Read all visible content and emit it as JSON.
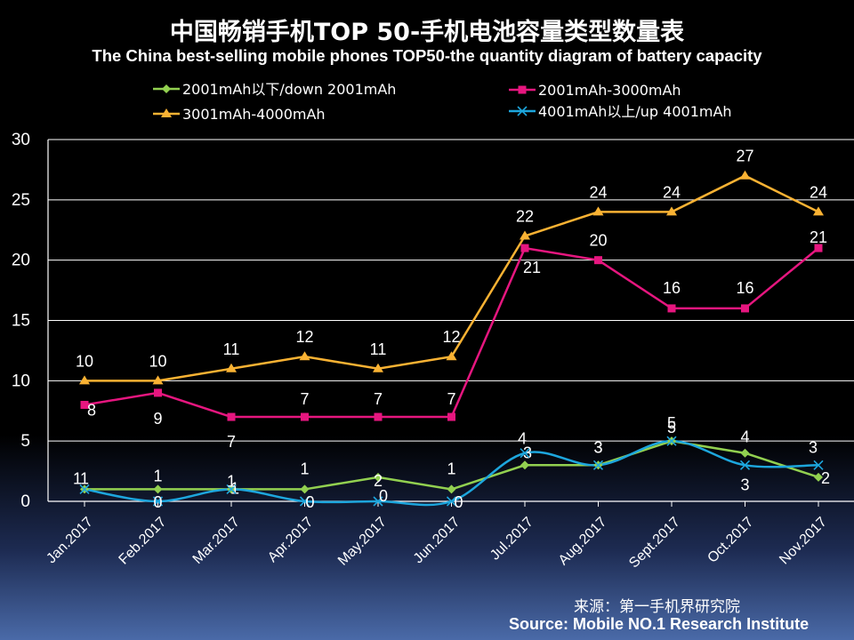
{
  "colors": {
    "down2001": "#92d050",
    "r2001_3000": "#e6167f",
    "r3001_4000": "#f9b233",
    "up4001": "#1da6dd",
    "grid": "#ffffff",
    "text": "#ffffff"
  },
  "chart_data": {
    "type": "line",
    "title": "中国畅销手机TOP 50-手机电池容量类型数量表",
    "subtitle": "The China best-selling mobile phones TOP50-the quantity diagram of battery capacity",
    "categories": [
      "Jan.2017",
      "Feb.2017",
      "Mar.2017",
      "Apr.2017",
      "May.2017",
      "Jun.2017",
      "Jul.2017",
      "Aug.2017",
      "Sept.2017",
      "Oct.2017",
      "Nov.2017"
    ],
    "ylim": [
      0,
      30
    ],
    "yticks": [
      "0",
      "5",
      "10",
      "15",
      "20",
      "25",
      "30"
    ],
    "grid": true,
    "legend_position": "top",
    "series": [
      {
        "name": "2001mAh以下/down 2001mAh",
        "marker": "diamond",
        "values": [
          1,
          1,
          1,
          1,
          2,
          1,
          3,
          3,
          5,
          4,
          2
        ],
        "labels": [
          "1",
          "1",
          "1",
          "1",
          "2",
          "1",
          "3",
          "3",
          "5",
          "4",
          "2"
        ]
      },
      {
        "name": "2001mAh-3000mAh",
        "marker": "square",
        "values": [
          8,
          9,
          7,
          7,
          7,
          7,
          21,
          20,
          16,
          16,
          21
        ],
        "labels": [
          "8",
          "9",
          "7",
          "7",
          "7",
          "7",
          "21",
          "20",
          "16",
          "16",
          "21"
        ]
      },
      {
        "name": "3001mAh-4000mAh",
        "marker": "triangle",
        "values": [
          10,
          10,
          11,
          12,
          11,
          12,
          22,
          24,
          24,
          27,
          24
        ],
        "labels": [
          "10",
          "10",
          "11",
          "12",
          "11",
          "12",
          "22",
          "24",
          "24",
          "27",
          "24"
        ]
      },
      {
        "name": "4001mAh以上/up 4001mAh",
        "marker": "x",
        "values": [
          1,
          0,
          1,
          0,
          0,
          0,
          4,
          3,
          5,
          3,
          3
        ],
        "labels": [
          "1",
          "0",
          "1",
          "0",
          "0",
          "0",
          "4",
          "3",
          "5",
          "3",
          "3"
        ]
      }
    ]
  },
  "source": {
    "cn": "来源：第一手机界研究院",
    "en": "Source: Mobile NO.1 Research Institute"
  }
}
